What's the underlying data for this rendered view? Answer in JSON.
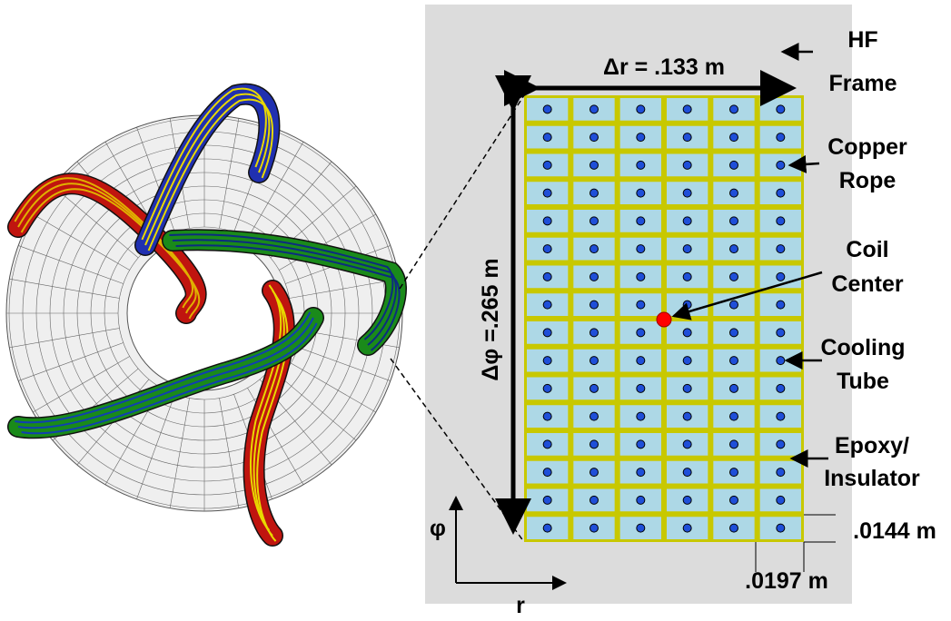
{
  "labels": {
    "delta_r": "Δr = .133 m",
    "delta_phi": "Δφ =.265 m",
    "hf_frame": [
      "HF",
      "Frame"
    ],
    "copper_rope": [
      "Copper",
      "Rope"
    ],
    "coil_center": [
      "Coil",
      "Center"
    ],
    "cooling_tube": [
      "Cooling",
      "Tube"
    ],
    "epoxy_insulator": [
      "Epoxy/",
      "Insulator"
    ],
    "cell_height": ".0144 m",
    "cell_width": ".0197 m",
    "axis_phi": "φ",
    "axis_r": "r"
  }
}
